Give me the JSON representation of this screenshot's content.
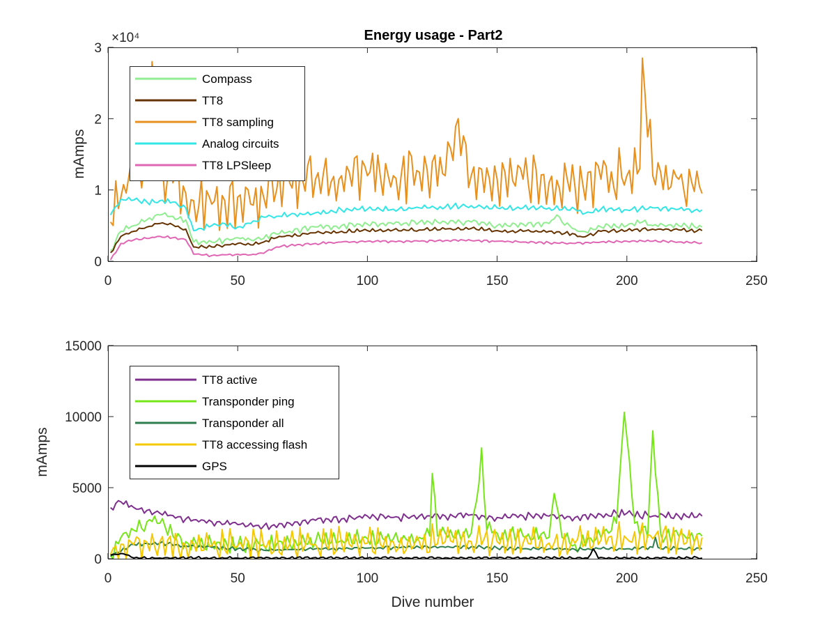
{
  "figure": {
    "background": "#ffffff"
  },
  "chart_data": [
    {
      "type": "line",
      "title": "Energy usage - Part2",
      "xlabel": "",
      "ylabel": "mAmps",
      "xlim": [
        0,
        250
      ],
      "ylim": [
        0,
        30000
      ],
      "xticks": [
        0,
        50,
        100,
        150,
        200,
        250
      ],
      "yticks": [
        0,
        10000,
        20000,
        30000
      ],
      "ytick_labels": [
        "0",
        "1",
        "2",
        "3"
      ],
      "exponent_label": "×10⁴",
      "grid": false,
      "legend_position": "top-left",
      "x_range": [
        1,
        229
      ],
      "series": [
        {
          "name": "Compass",
          "color": "#90EE90"
        },
        {
          "name": "TT8",
          "color": "#663300"
        },
        {
          "name": "TT8 sampling",
          "color": "#E8901E"
        },
        {
          "name": "Analog circuits",
          "color": "#33E6E6"
        },
        {
          "name": "TT8 LPSleep",
          "color": "#E066B3"
        }
      ],
      "profiles": {
        "Compass": {
          "x": [
            1,
            5,
            10,
            15,
            20,
            25,
            30,
            33,
            40,
            45,
            50,
            55,
            60,
            65,
            70,
            80,
            90,
            100,
            110,
            120,
            130,
            140,
            150,
            160,
            170,
            173,
            175,
            180,
            183,
            190,
            200,
            206,
            210,
            220,
            229
          ],
          "y": [
            1500,
            4200,
            5000,
            5800,
            6500,
            6300,
            5800,
            2700,
            2700,
            3000,
            3300,
            3000,
            3200,
            3800,
            4200,
            4800,
            5000,
            5200,
            5200,
            5500,
            5500,
            5500,
            5000,
            5200,
            5300,
            6500,
            5500,
            4500,
            4200,
            4800,
            5000,
            5500,
            5000,
            5000,
            4800
          ],
          "amp": 500
        },
        "TT8": {
          "x": [
            1,
            5,
            10,
            15,
            20,
            25,
            30,
            33,
            40,
            45,
            50,
            55,
            60,
            65,
            70,
            80,
            90,
            100,
            110,
            120,
            130,
            140,
            150,
            160,
            170,
            180,
            183,
            190,
            200,
            210,
            220,
            229
          ],
          "y": [
            1200,
            3500,
            4200,
            4800,
            5300,
            5100,
            4500,
            2000,
            2000,
            2300,
            2500,
            2300,
            2700,
            3300,
            3600,
            4000,
            4200,
            4300,
            4400,
            4400,
            4500,
            4600,
            4300,
            4200,
            4200,
            3800,
            3400,
            4200,
            4300,
            4500,
            4400,
            4300
          ],
          "amp": 300
        },
        "TT8 sampling": {
          "x": [
            1,
            5,
            10,
            15,
            17,
            20,
            25,
            30,
            33,
            40,
            45,
            50,
            55,
            60,
            65,
            70,
            80,
            90,
            100,
            110,
            120,
            130,
            135,
            140,
            150,
            160,
            170,
            180,
            190,
            200,
            205,
            206,
            210,
            220,
            229
          ],
          "y": [
            5500,
            9000,
            12000,
            13000,
            28000,
            13000,
            11000,
            9500,
            8500,
            8000,
            8500,
            9000,
            8000,
            9000,
            10000,
            11000,
            11500,
            12000,
            12000,
            12000,
            12500,
            12000,
            20000,
            12000,
            11500,
            11500,
            11000,
            10500,
            11500,
            12000,
            13000,
            28500,
            12000,
            11500,
            9500
          ],
          "amp": 4500
        },
        "Analog circuits": {
          "x": [
            1,
            5,
            10,
            15,
            20,
            25,
            30,
            33,
            40,
            45,
            50,
            55,
            60,
            65,
            70,
            80,
            90,
            100,
            110,
            120,
            130,
            140,
            150,
            160,
            170,
            180,
            183,
            190,
            200,
            210,
            220,
            229
          ],
          "y": [
            6500,
            8700,
            8600,
            8300,
            8500,
            8300,
            7500,
            4300,
            5000,
            5300,
            4800,
            5300,
            6200,
            6300,
            6500,
            6800,
            7200,
            7300,
            7300,
            7500,
            7600,
            7800,
            7500,
            7500,
            7500,
            7300,
            6600,
            7300,
            7200,
            7500,
            7300,
            7200
          ],
          "amp": 450
        },
        "TT8 LPSleep": {
          "x": [
            1,
            5,
            10,
            15,
            20,
            25,
            30,
            33,
            40,
            45,
            50,
            55,
            60,
            65,
            70,
            80,
            90,
            100,
            110,
            120,
            130,
            140,
            150,
            160,
            170,
            180,
            190,
            200,
            210,
            220,
            229
          ],
          "y": [
            200,
            2500,
            3000,
            3200,
            3500,
            3300,
            3000,
            1000,
            800,
            900,
            1000,
            900,
            1100,
            2000,
            2200,
            2500,
            2700,
            2800,
            2800,
            2800,
            2900,
            2900,
            2800,
            2700,
            2600,
            2500,
            2700,
            2800,
            2800,
            2700,
            2600
          ],
          "amp": 200
        }
      }
    },
    {
      "type": "line",
      "title": "",
      "xlabel": "Dive number",
      "ylabel": "mAmps",
      "xlim": [
        0,
        250
      ],
      "ylim": [
        0,
        15000
      ],
      "xticks": [
        0,
        50,
        100,
        150,
        200,
        250
      ],
      "yticks": [
        0,
        5000,
        10000,
        15000
      ],
      "ytick_labels": [
        "0",
        "5000",
        "10000",
        "15000"
      ],
      "grid": false,
      "legend_position": "top-left",
      "x_range": [
        1,
        229
      ],
      "series": [
        {
          "name": "TT8 active",
          "color": "#7E2F8E"
        },
        {
          "name": "Transponder ping",
          "color": "#77E619"
        },
        {
          "name": "Transponder all",
          "color": "#2E7D4F"
        },
        {
          "name": "TT8 accessing flash",
          "color": "#F5C800"
        },
        {
          "name": "GPS",
          "color": "#000000"
        }
      ],
      "profiles": {
        "TT8 active": {
          "x": [
            1,
            5,
            10,
            15,
            20,
            30,
            40,
            50,
            60,
            70,
            80,
            90,
            100,
            110,
            120,
            130,
            140,
            150,
            160,
            170,
            180,
            190,
            200,
            210,
            220,
            229
          ],
          "y": [
            3600,
            4000,
            3600,
            3400,
            3200,
            2800,
            2600,
            2400,
            2300,
            2500,
            2700,
            2800,
            3000,
            2900,
            3000,
            3000,
            3100,
            2900,
            3000,
            3000,
            2900,
            3100,
            3200,
            3000,
            3000,
            3000
          ],
          "amp": 300
        },
        "Transponder ping": {
          "x": [
            1,
            5,
            10,
            15,
            18,
            20,
            25,
            30,
            40,
            50,
            60,
            70,
            80,
            90,
            100,
            110,
            120,
            124,
            125,
            127,
            130,
            140,
            143,
            144,
            146,
            150,
            160,
            170,
            172,
            175,
            180,
            190,
            196,
            199,
            203,
            208,
            210,
            213,
            220,
            229
          ],
          "y": [
            200,
            1500,
            2000,
            2600,
            3000,
            2500,
            1600,
            1200,
            1000,
            900,
            1000,
            1100,
            1200,
            1300,
            1400,
            1400,
            1500,
            1600,
            6000,
            1600,
            1800,
            1800,
            5300,
            7800,
            2000,
            1800,
            1600,
            1500,
            4600,
            1500,
            1000,
            1500,
            2500,
            10300,
            2500,
            1500,
            9000,
            1800,
            1600,
            1600
          ],
          "amp": 700
        },
        "Transponder all": {
          "x": [
            1,
            10,
            20,
            30,
            40,
            50,
            60,
            70,
            80,
            90,
            100,
            110,
            120,
            130,
            140,
            150,
            160,
            170,
            180,
            190,
            200,
            210,
            211,
            212,
            220,
            229
          ],
          "y": [
            200,
            1000,
            1100,
            900,
            800,
            700,
            600,
            650,
            700,
            700,
            750,
            800,
            800,
            800,
            850,
            750,
            700,
            700,
            650,
            700,
            700,
            800,
            1500,
            800,
            700,
            700
          ],
          "amp": 150
        },
        "TT8 accessing flash": {
          "x": [
            1,
            10,
            20,
            30,
            40,
            50,
            60,
            70,
            80,
            90,
            100,
            110,
            120,
            130,
            140,
            150,
            160,
            170,
            180,
            190,
            200,
            210,
            220,
            229
          ],
          "y": [
            300,
            1000,
            1200,
            900,
            900,
            900,
            900,
            1000,
            1000,
            1100,
            1100,
            1200,
            1200,
            1200,
            1200,
            1200,
            1100,
            1100,
            1100,
            1300,
            1400,
            1400,
            1400,
            1500
          ],
          "amp": 1300
        },
        "GPS": {
          "x": [
            1,
            3,
            6,
            8,
            10,
            20,
            50,
            100,
            150,
            185,
            187,
            189,
            200,
            229
          ],
          "y": [
            250,
            300,
            350,
            250,
            50,
            50,
            50,
            50,
            50,
            50,
            700,
            50,
            50,
            50
          ],
          "amp": 120
        }
      }
    }
  ]
}
